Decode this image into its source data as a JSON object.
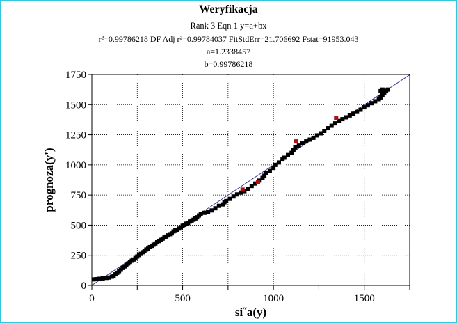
{
  "chart_data": {
    "type": "scatter",
    "title": "Weryfikacja",
    "subtitle_lines": [
      "Rank 3  Eqn 1  y=a+bx",
      "r²=0.99786218  DF Adj r²=0.99784037  FitStdErr=21.706692  Fstat=91953.043",
      "a=1.2338457",
      "b=0.99786218"
    ],
    "xlabel": "si˝a(y)",
    "ylabel": "prognoza(y')",
    "xlim": [
      0,
      1750
    ],
    "ylim": [
      0,
      1750
    ],
    "x_ticks": [
      0,
      500,
      1000,
      1500
    ],
    "y_ticks": [
      0,
      250,
      500,
      750,
      1000,
      1250,
      1500,
      1750
    ],
    "grid": true,
    "fit_line": {
      "a": 1.2338457,
      "b": 0.99786218,
      "color": "#3a3aa0"
    },
    "series": [
      {
        "marker_color": "#000000",
        "points": [
          [
            10,
            50
          ],
          [
            25,
            52
          ],
          [
            40,
            55
          ],
          [
            60,
            58
          ],
          [
            80,
            62
          ],
          [
            95,
            65
          ],
          [
            110,
            72
          ],
          [
            120,
            80
          ],
          [
            130,
            92
          ],
          [
            140,
            105
          ],
          [
            150,
            118
          ],
          [
            160,
            130
          ],
          [
            170,
            145
          ],
          [
            180,
            158
          ],
          [
            190,
            170
          ],
          [
            200,
            182
          ],
          [
            210,
            195
          ],
          [
            220,
            205
          ],
          [
            230,
            215
          ],
          [
            240,
            228
          ],
          [
            250,
            240
          ],
          [
            260,
            252
          ],
          [
            270,
            262
          ],
          [
            280,
            275
          ],
          [
            290,
            285
          ],
          [
            300,
            298
          ],
          [
            310,
            305
          ],
          [
            320,
            318
          ],
          [
            330,
            328
          ],
          [
            340,
            338
          ],
          [
            350,
            348
          ],
          [
            360,
            358
          ],
          [
            370,
            368
          ],
          [
            380,
            378
          ],
          [
            390,
            388
          ],
          [
            400,
            398
          ],
          [
            410,
            405
          ],
          [
            420,
            415
          ],
          [
            430,
            425
          ],
          [
            440,
            432
          ],
          [
            450,
            448
          ],
          [
            460,
            458
          ],
          [
            470,
            462
          ],
          [
            480,
            472
          ],
          [
            490,
            482
          ],
          [
            500,
            495
          ],
          [
            510,
            502
          ],
          [
            520,
            512
          ],
          [
            530,
            518
          ],
          [
            540,
            530
          ],
          [
            550,
            538
          ],
          [
            560,
            545
          ],
          [
            570,
            555
          ],
          [
            580,
            565
          ],
          [
            590,
            580
          ],
          [
            600,
            592
          ],
          [
            620,
            602
          ],
          [
            640,
            612
          ],
          [
            660,
            622
          ],
          [
            680,
            640
          ],
          [
            700,
            660
          ],
          [
            720,
            672
          ],
          [
            730,
            690
          ],
          [
            740,
            700
          ],
          [
            760,
            718
          ],
          [
            780,
            738
          ],
          [
            800,
            755
          ],
          [
            820,
            770
          ],
          [
            840,
            782
          ],
          [
            860,
            800
          ],
          [
            880,
            825
          ],
          [
            900,
            845
          ],
          [
            920,
            870
          ],
          [
            940,
            892
          ],
          [
            950,
            910
          ],
          [
            960,
            930
          ],
          [
            980,
            950
          ],
          [
            1000,
            975
          ],
          [
            1010,
            1000
          ],
          [
            1030,
            1020
          ],
          [
            1050,
            1045
          ],
          [
            1060,
            1060
          ],
          [
            1080,
            1082
          ],
          [
            1100,
            1100
          ],
          [
            1110,
            1125
          ],
          [
            1120,
            1145
          ],
          [
            1140,
            1160
          ],
          [
            1160,
            1178
          ],
          [
            1180,
            1195
          ],
          [
            1200,
            1210
          ],
          [
            1220,
            1225
          ],
          [
            1240,
            1245
          ],
          [
            1260,
            1262
          ],
          [
            1280,
            1282
          ],
          [
            1300,
            1305
          ],
          [
            1320,
            1325
          ],
          [
            1340,
            1345
          ],
          [
            1360,
            1365
          ],
          [
            1380,
            1380
          ],
          [
            1400,
            1395
          ],
          [
            1420,
            1410
          ],
          [
            1440,
            1425
          ],
          [
            1460,
            1440
          ],
          [
            1480,
            1458
          ],
          [
            1500,
            1478
          ],
          [
            1520,
            1495
          ],
          [
            1540,
            1512
          ],
          [
            1560,
            1528
          ],
          [
            1580,
            1545
          ],
          [
            1590,
            1560
          ],
          [
            1600,
            1580
          ],
          [
            1610,
            1600
          ],
          [
            1620,
            1615
          ],
          [
            1630,
            1625
          ],
          [
            1600,
            1625
          ],
          [
            1590,
            1612
          ]
        ]
      },
      {
        "marker_color": "#b01010",
        "points": [
          [
            830,
            795
          ],
          [
            915,
            860
          ],
          [
            1125,
            1195
          ],
          [
            1345,
            1390
          ]
        ]
      }
    ]
  }
}
